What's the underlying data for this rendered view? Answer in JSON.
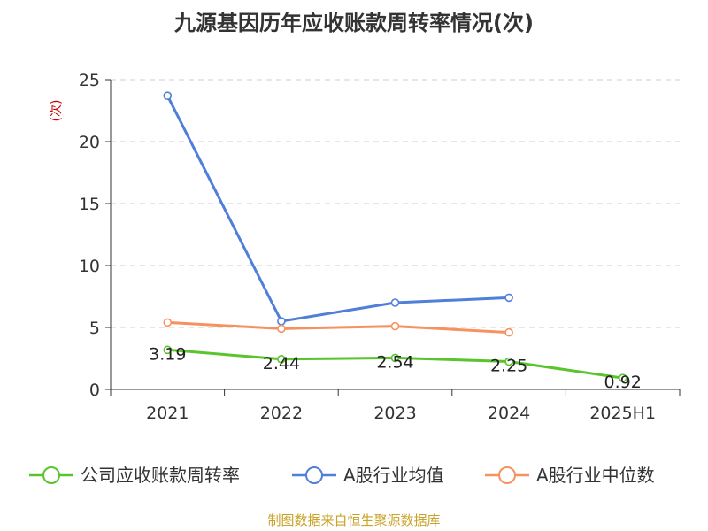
{
  "chart_data": {
    "type": "line",
    "title": "九源基因历年应收账款周转率情况(次)",
    "ylabel": "(次)",
    "xlabel": "",
    "categories": [
      "2021",
      "2022",
      "2023",
      "2024",
      "2025H1"
    ],
    "ylim": [
      0,
      25
    ],
    "yticks": [
      0,
      5,
      10,
      15,
      20,
      25
    ],
    "grid": true,
    "legend_position": "bottom",
    "series": [
      {
        "name": "公司应收账款周转率",
        "color": "#5ac42c",
        "values": [
          3.19,
          2.44,
          2.54,
          2.25,
          0.92
        ],
        "labels": [
          "3.19",
          "2.44",
          "2.54",
          "2.25",
          "0.92"
        ]
      },
      {
        "name": "A股行业均值",
        "color": "#4f7fd9",
        "values": [
          23.7,
          5.5,
          7.0,
          7.4,
          null
        ]
      },
      {
        "name": "A股行业中位数",
        "color": "#f5925f",
        "values": [
          5.4,
          4.9,
          5.1,
          4.6,
          null
        ]
      }
    ],
    "source": "制图数据来自恒生聚源数据库"
  }
}
